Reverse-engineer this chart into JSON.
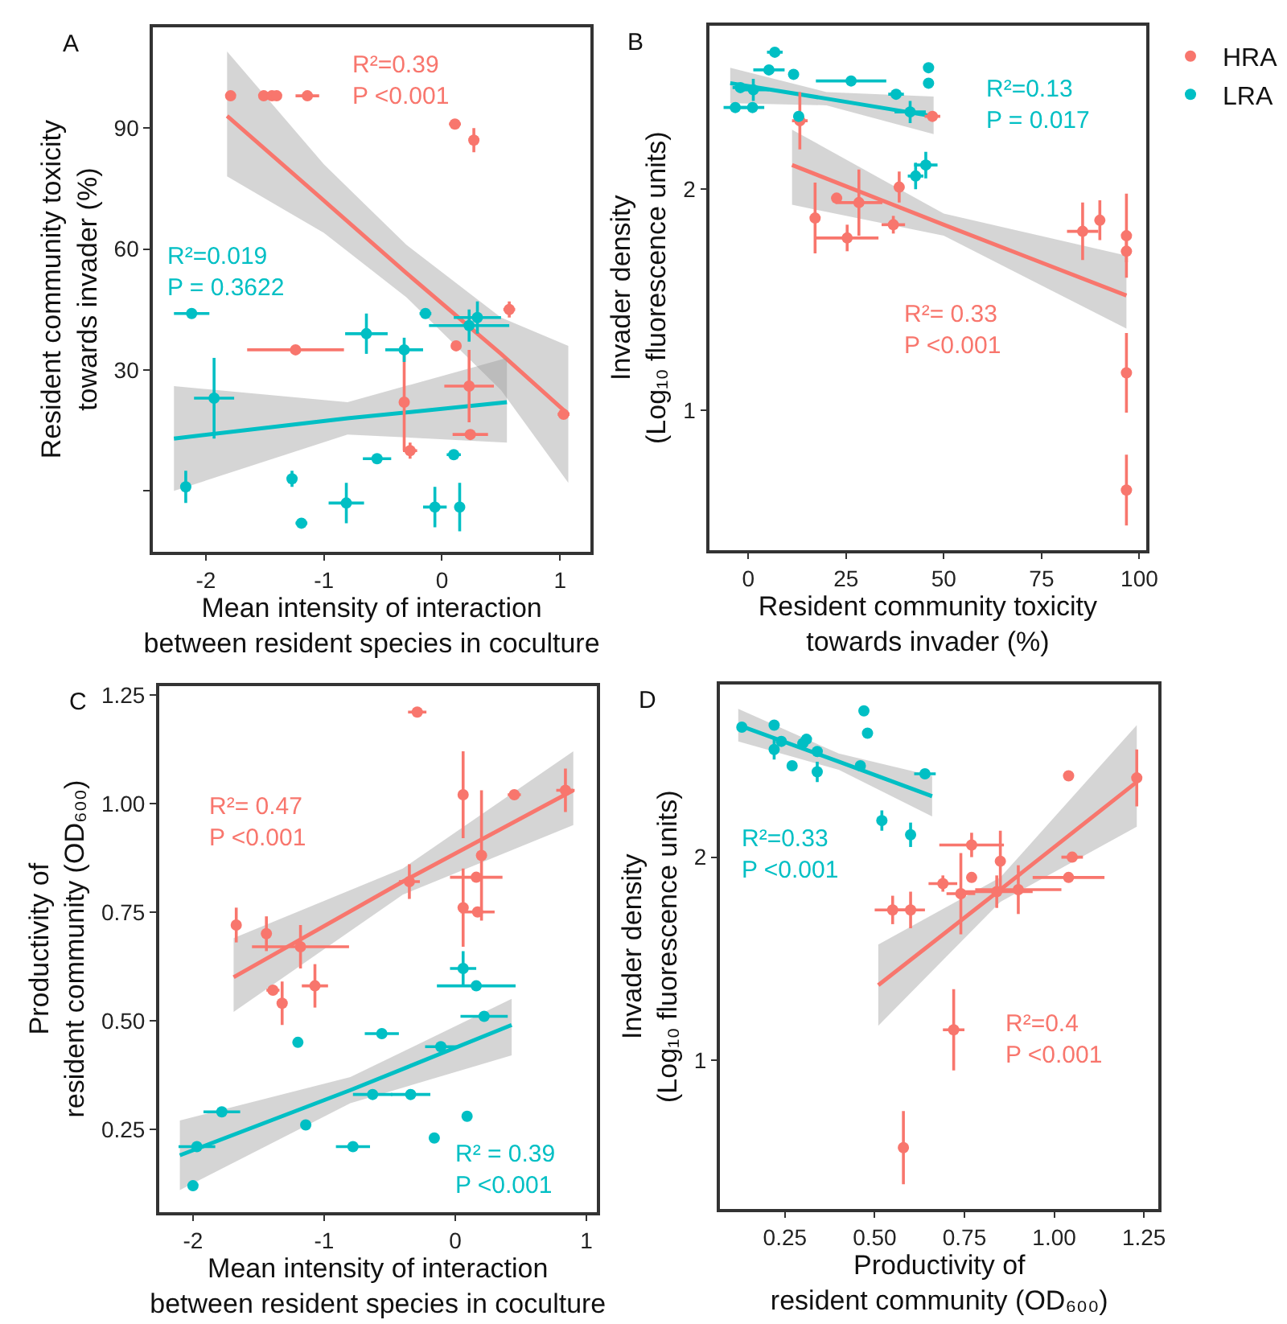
{
  "chart_data": [
    {
      "type": "scatter",
      "title": "A",
      "xlabel": "Mean intensity of interaction\nbetween resident species in coculture",
      "ylabel": "Resident community toxicity\ntowards invader (%)",
      "xlim": [
        -2.45,
        1.26
      ],
      "xticks": [
        -2,
        -1,
        0,
        1
      ],
      "ylim": [
        -15,
        115
      ],
      "yticks": [
        {
          "value": 0,
          "label": null
        },
        30,
        60,
        90
      ],
      "marker": "circle",
      "annotations": [
        "R²=0.39\nP <0.001",
        "R²=0.019\nP = 0.3622"
      ],
      "series": [
        {
          "color": "#f8766d",
          "x": [
            -1.79,
            -1.51,
            -1.44,
            -1.4,
            -1.14,
            0.11,
            0.27,
            0.57,
            -1.24,
            0.12,
            0.23,
            -0.32,
            0.24,
            -0.27,
            1.03
          ],
          "values": [
            98,
            98,
            98,
            98,
            98,
            91,
            87,
            45,
            35,
            36,
            26,
            22,
            14,
            10,
            19
          ],
          "errors": [
            null,
            null,
            null,
            null,
            null,
            null,
            3,
            2,
            null,
            null,
            9,
            12,
            null,
            2,
            null
          ],
          "xerrors": [
            0.03,
            0.03,
            0.03,
            0.03,
            0.1,
            0.05,
            null,
            0.05,
            0.41,
            0.03,
            0.21,
            null,
            0.15,
            0.06,
            0.05
          ]
        },
        {
          "color": "#00bfc4",
          "x": [
            -2.12,
            -1.93,
            -2.17,
            -1.27,
            -1.19,
            -0.81,
            -0.64,
            -0.32,
            -0.55,
            -0.14,
            0.3,
            0.23,
            0.1,
            -0.06,
            0.15
          ],
          "values": [
            44,
            23,
            1,
            3,
            -8,
            -3,
            39,
            35,
            8,
            44,
            43,
            41,
            9,
            -4,
            -4
          ],
          "errors": [
            null,
            10,
            4,
            2,
            null,
            5,
            5,
            3,
            null,
            null,
            4,
            4,
            null,
            5,
            6
          ],
          "xerrors": [
            0.15,
            0.17,
            null,
            null,
            0.05,
            0.15,
            0.18,
            0.16,
            0.12,
            0.05,
            0.2,
            0.34,
            0.06,
            0.1,
            null
          ]
        },
        {
          "type": "line",
          "marker": "none",
          "color": "#f8766d",
          "x": [
            -1.82,
            -1,
            -0.3,
            0.5,
            1.07
          ],
          "values": [
            93,
            72,
            54,
            34,
            19
          ],
          "lower": [
            78,
            64,
            48,
            25,
            2
          ],
          "upper": [
            109,
            81,
            61,
            43,
            36
          ]
        },
        {
          "type": "line",
          "marker": "none",
          "color": "#00bfc4",
          "x": [
            -2.27,
            -0.8,
            0.55
          ],
          "values": [
            13,
            18,
            22
          ],
          "lower": [
            0,
            14,
            12
          ],
          "upper": [
            26,
            22,
            33
          ]
        }
      ]
    },
    {
      "type": "scatter",
      "title": "B",
      "xlabel": "Resident community toxicity\ntowards invader (%)",
      "ylabel": "Invader density\n(Log₁₀ fluorescence units)",
      "xlim": [
        -9.9,
        101.7
      ],
      "xticks": [
        0,
        25,
        50,
        75,
        100
      ],
      "ylim": [
        0.37,
        2.74
      ],
      "yticks": [
        1,
        2
      ],
      "marker": "circle",
      "legend": "right",
      "annotations": [
        "R²= 0.33\nP <0.001",
        "R²=0.13\nP = 0.017"
      ],
      "series": [
        {
          "name": "HRA",
          "color": "#f8766d",
          "x": [
            13.2,
            47.1,
            22.6,
            28.3,
            38.6,
            17.1,
            25.3,
            37.1,
            85.5,
            89.9,
            96.7,
            96.7,
            96.7,
            96.7
          ],
          "values": [
            2.31,
            2.33,
            1.96,
            1.94,
            2.01,
            1.87,
            1.78,
            1.84,
            1.81,
            1.86,
            1.79,
            1.72,
            1.17,
            0.64
          ],
          "errors": [
            0.13,
            null,
            null,
            0.15,
            0.07,
            0.16,
            0.06,
            0.04,
            0.13,
            0.09,
            0.19,
            0.05,
            0.18,
            0.16
          ],
          "xerrors": [
            2,
            2,
            null,
            6,
            1,
            1,
            8,
            3,
            4,
            1,
            null,
            null,
            null,
            null
          ]
        },
        {
          "name": "LRA",
          "color": "#00bfc4",
          "x": [
            -3.3,
            1.1,
            1.3,
            -2.0,
            5.3,
            6.8,
            11.6,
            26.3,
            37.8,
            41.4,
            12.9,
            42.8,
            45.4,
            46.1,
            46.1
          ],
          "values": [
            2.37,
            2.37,
            2.45,
            2.46,
            2.54,
            2.62,
            2.52,
            2.49,
            2.43,
            2.35,
            2.33,
            2.06,
            2.11,
            2.55,
            2.48
          ],
          "errors": [
            null,
            null,
            0.05,
            null,
            null,
            null,
            null,
            null,
            null,
            0.05,
            null,
            0.06,
            0.06,
            null,
            null
          ],
          "xerrors": [
            3,
            3,
            4,
            2,
            4,
            2,
            1,
            9,
            2,
            4,
            null,
            2,
            3,
            null,
            null
          ]
        },
        {
          "type": "line",
          "marker": "none",
          "color": "#f8766d",
          "x": [
            11.2,
            50,
            96.7
          ],
          "values": [
            2.11,
            1.84,
            1.52
          ],
          "lower": [
            1.93,
            1.79,
            1.37
          ],
          "upper": [
            2.27,
            1.89,
            1.7
          ]
        },
        {
          "type": "line",
          "marker": "none",
          "color": "#00bfc4",
          "x": [
            -4.6,
            20,
            47.4
          ],
          "values": [
            2.48,
            2.41,
            2.33
          ],
          "lower": [
            2.39,
            2.38,
            2.25
          ],
          "upper": [
            2.55,
            2.44,
            2.42
          ]
        }
      ]
    },
    {
      "type": "scatter",
      "title": "C",
      "xlabel": "Mean intensity of interaction\nbetween resident species in coculture",
      "ylabel": "Productivity of\nresident community (OD₆₀₀)",
      "xlim": [
        -2.26,
        1.08
      ],
      "xticks": [
        -2,
        -1,
        0,
        1
      ],
      "ylim": [
        0.06,
        1.27
      ],
      "yticks": [
        0.25,
        {
          "value": 0.5,
          "label": "0.50"
        },
        0.75,
        {
          "value": 1,
          "label": "1.00"
        },
        1.25
      ],
      "marker": "circle",
      "annotations": [
        "R²= 0.47\nP <0.001",
        "R² = 0.39\nP <0.001"
      ],
      "series": [
        {
          "color": "#f8766d",
          "x": [
            -0.29,
            0.06,
            0.45,
            0.84,
            0.2,
            0.16,
            -0.35,
            0.06,
            0.17,
            -1.67,
            -1.44,
            -1.18,
            -1.39,
            -1.32,
            -1.07
          ],
          "values": [
            1.21,
            1.02,
            1.02,
            1.03,
            0.88,
            0.83,
            0.82,
            0.76,
            0.75,
            0.72,
            0.7,
            0.67,
            0.57,
            0.54,
            0.58
          ],
          "errors": [
            null,
            0.1,
            null,
            0.05,
            0.15,
            null,
            0.04,
            0.09,
            null,
            0.04,
            0.04,
            0.05,
            null,
            0.05,
            0.05
          ],
          "xerrors": [
            0.07,
            0.03,
            0.05,
            0.07,
            null,
            0.2,
            0.08,
            null,
            0.13,
            null,
            0.03,
            0.37,
            0.05,
            null,
            0.1
          ]
        },
        {
          "color": "#00bfc4",
          "x": [
            0.06,
            0.16,
            0.22,
            -1.2,
            -0.56,
            -0.11,
            -0.63,
            -0.34,
            -1.78,
            -1.14,
            -0.78,
            -0.16,
            0.09,
            -1.97,
            -2.0
          ],
          "values": [
            0.62,
            0.58,
            0.51,
            0.45,
            0.47,
            0.44,
            0.33,
            0.33,
            0.29,
            0.26,
            0.21,
            0.23,
            0.28,
            0.21,
            0.12
          ],
          "errors": [
            0.04,
            null,
            null,
            null,
            null,
            null,
            null,
            null,
            null,
            null,
            null,
            null,
            null,
            null,
            null
          ],
          "xerrors": [
            0.1,
            0.3,
            0.18,
            null,
            0.13,
            0.12,
            0.15,
            0.15,
            0.14,
            null,
            0.13,
            null,
            null,
            0.14,
            null
          ]
        },
        {
          "type": "line",
          "marker": "none",
          "color": "#f8766d",
          "x": [
            -1.69,
            -0.4,
            0.9
          ],
          "values": [
            0.6,
            0.82,
            1.03
          ],
          "lower": [
            0.52,
            0.79,
            0.95
          ],
          "upper": [
            0.69,
            0.85,
            1.12
          ]
        },
        {
          "type": "line",
          "marker": "none",
          "color": "#00bfc4",
          "x": [
            -2.1,
            -0.8,
            0.43
          ],
          "values": [
            0.19,
            0.34,
            0.49
          ],
          "lower": [
            0.11,
            0.31,
            0.42
          ],
          "upper": [
            0.27,
            0.37,
            0.55
          ]
        }
      ]
    },
    {
      "type": "scatter",
      "title": "D",
      "xlabel": "Productivity of\nresident community (OD₆₀₀)",
      "ylabel": "Invader density\n(Log₁₀ fluorescence units)",
      "xlim": [
        0.07,
        1.29
      ],
      "xticks": [
        0.25,
        {
          "value": 0.5,
          "label": "0.50"
        },
        0.75,
        {
          "value": 1,
          "label": "1.00"
        },
        1.25
      ],
      "ylim": [
        0.27,
        2.85
      ],
      "yticks": [
        1,
        2
      ],
      "marker": "circle",
      "annotations": [
        "R²=0.4\nP <0.001",
        "R²=0.33\nP <0.001"
      ],
      "series": [
        {
          "color": "#f8766d",
          "x": [
            1.23,
            1.04,
            1.05,
            1.04,
            0.77,
            0.85,
            0.77,
            0.69,
            0.74,
            0.84,
            0.9,
            0.55,
            0.6,
            0.72,
            0.58
          ],
          "values": [
            2.39,
            2.4,
            2.0,
            1.9,
            2.06,
            1.98,
            1.9,
            1.87,
            1.82,
            1.83,
            1.84,
            1.74,
            1.74,
            1.15,
            0.57
          ],
          "errors": [
            0.14,
            null,
            null,
            null,
            0.06,
            0.15,
            null,
            0.04,
            0.2,
            0.08,
            0.12,
            0.07,
            0.09,
            0.2,
            0.18
          ],
          "xerrors": [
            null,
            null,
            0.03,
            0.1,
            0.09,
            null,
            null,
            0.04,
            0.04,
            0.1,
            0.12,
            0.05,
            0.04,
            0.03,
            null
          ]
        },
        {
          "color": "#00bfc4",
          "x": [
            0.13,
            0.22,
            0.24,
            0.22,
            0.27,
            0.31,
            0.3,
            0.34,
            0.34,
            0.46,
            0.47,
            0.48,
            0.64,
            0.52,
            0.6
          ],
          "values": [
            2.64,
            2.65,
            2.57,
            2.53,
            2.45,
            2.58,
            2.56,
            2.52,
            2.42,
            2.45,
            2.72,
            2.61,
            2.41,
            2.18,
            2.11
          ],
          "errors": [
            null,
            null,
            null,
            0.05,
            null,
            null,
            null,
            null,
            0.05,
            null,
            null,
            null,
            null,
            0.05,
            0.06
          ],
          "xerrors": [
            null,
            null,
            null,
            null,
            null,
            null,
            null,
            null,
            null,
            null,
            null,
            null,
            0.03,
            null,
            null
          ]
        },
        {
          "type": "line",
          "marker": "none",
          "color": "#f8766d",
          "x": [
            0.51,
            0.85,
            1.23
          ],
          "values": [
            1.37,
            1.84,
            2.37
          ],
          "lower": [
            1.17,
            1.78,
            2.15
          ],
          "upper": [
            1.57,
            1.9,
            2.65
          ]
        },
        {
          "type": "line",
          "marker": "none",
          "color": "#00bfc4",
          "x": [
            0.12,
            0.4,
            0.66
          ],
          "values": [
            2.65,
            2.47,
            2.3
          ],
          "lower": [
            2.57,
            2.43,
            2.2
          ],
          "upper": [
            2.73,
            2.51,
            2.4
          ]
        }
      ]
    }
  ]
}
